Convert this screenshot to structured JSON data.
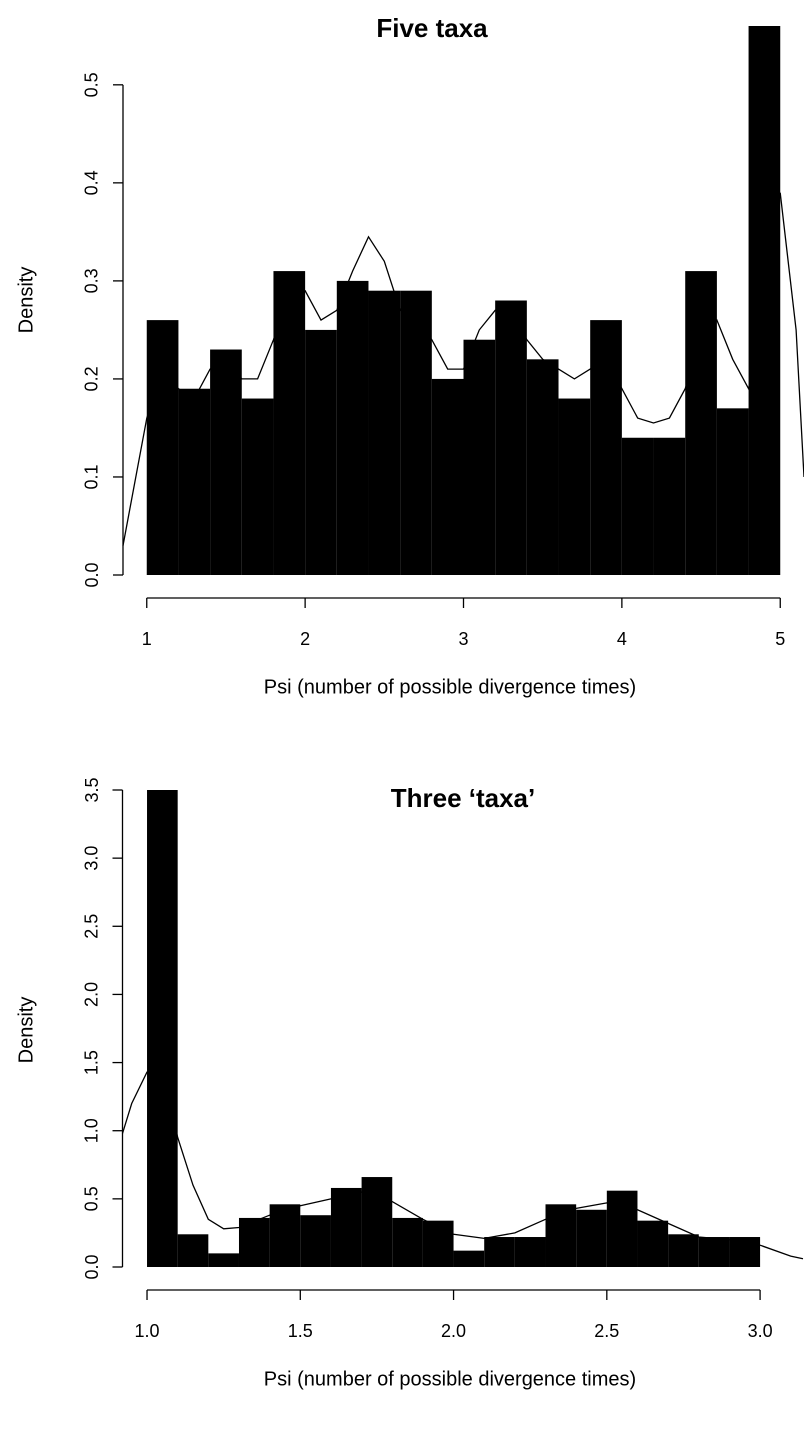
{
  "chart_data": [
    {
      "type": "histogram",
      "title": "Five taxa",
      "xlabel": "Psi (number of possible divergence times)",
      "ylabel": "Density",
      "color": "#000000",
      "bins": [
        1.0,
        1.2,
        1.4,
        1.6,
        1.8,
        2.0,
        2.2,
        2.4,
        2.6,
        2.8,
        3.0,
        3.2,
        3.4,
        3.6,
        3.8,
        4.0,
        4.2,
        4.4,
        4.6,
        4.8,
        5.0
      ],
      "values": [
        0.26,
        0.19,
        0.23,
        0.18,
        0.31,
        0.25,
        0.3,
        0.29,
        0.29,
        0.2,
        0.24,
        0.28,
        0.22,
        0.18,
        0.26,
        0.14,
        0.14,
        0.31,
        0.17,
        0.56
      ],
      "density_curve": {
        "x": [
          0.85,
          1.0,
          1.1,
          1.2,
          1.3,
          1.4,
          1.5,
          1.6,
          1.7,
          1.8,
          1.9,
          2.0,
          2.1,
          2.2,
          2.3,
          2.4,
          2.5,
          2.6,
          2.7,
          2.8,
          2.9,
          3.0,
          3.1,
          3.2,
          3.3,
          3.4,
          3.5,
          3.6,
          3.7,
          3.8,
          3.9,
          4.0,
          4.1,
          4.2,
          4.3,
          4.4,
          4.5,
          4.6,
          4.7,
          4.8,
          4.9,
          5.0,
          5.1,
          5.15
        ],
        "y": [
          0.03,
          0.16,
          0.21,
          0.19,
          0.18,
          0.21,
          0.22,
          0.2,
          0.2,
          0.24,
          0.29,
          0.29,
          0.26,
          0.27,
          0.31,
          0.345,
          0.32,
          0.27,
          0.26,
          0.24,
          0.21,
          0.21,
          0.25,
          0.27,
          0.27,
          0.24,
          0.22,
          0.21,
          0.2,
          0.21,
          0.22,
          0.19,
          0.16,
          0.155,
          0.16,
          0.19,
          0.24,
          0.26,
          0.22,
          0.19,
          0.27,
          0.39,
          0.25,
          0.1
        ]
      },
      "xlim": [
        0.85,
        5.15
      ],
      "ylim": [
        0,
        0.56
      ],
      "xticks": [
        1,
        2,
        3,
        4,
        5
      ],
      "yticks": [
        {
          "value": 0,
          "label": "0.0"
        },
        0.1,
        0.2,
        0.3,
        0.4,
        0.5
      ]
    },
    {
      "type": "histogram",
      "title": "Three ‘taxa’",
      "xlabel": "Psi (number of possible divergence times)",
      "ylabel": "Density",
      "color": "#000000",
      "bins": [
        1.0,
        1.1,
        1.2,
        1.3,
        1.4,
        1.5,
        1.6,
        1.7,
        1.8,
        1.9,
        2.0,
        2.1,
        2.2,
        2.3,
        2.4,
        2.5,
        2.6,
        2.7,
        2.8,
        2.9,
        3.0
      ],
      "values": [
        3.5,
        0.24,
        0.1,
        0.36,
        0.46,
        0.38,
        0.58,
        0.66,
        0.36,
        0.34,
        0.12,
        0.22,
        0.22,
        0.46,
        0.42,
        0.56,
        0.34,
        0.24,
        0.22,
        0.22
      ],
      "density_curve": {
        "x": [
          0.92,
          0.95,
          1.0,
          1.05,
          1.1,
          1.15,
          1.2,
          1.25,
          1.3,
          1.4,
          1.5,
          1.6,
          1.7,
          1.8,
          1.9,
          2.0,
          2.1,
          2.2,
          2.3,
          2.4,
          2.5,
          2.6,
          2.7,
          2.8,
          2.9,
          3.0,
          3.1,
          3.14
        ],
        "y": [
          0.98,
          1.2,
          1.43,
          1.45,
          0.95,
          0.6,
          0.35,
          0.28,
          0.29,
          0.38,
          0.45,
          0.5,
          0.55,
          0.48,
          0.35,
          0.24,
          0.21,
          0.25,
          0.35,
          0.43,
          0.47,
          0.42,
          0.32,
          0.22,
          0.2,
          0.16,
          0.08,
          0.06
        ]
      },
      "xlim": [
        0.92,
        3.14
      ],
      "ylim": [
        0,
        3.5
      ],
      "xticks": [
        {
          "value": 1,
          "label": "1.0"
        },
        1.5,
        {
          "value": 2,
          "label": "2.0"
        },
        2.5,
        {
          "value": 3,
          "label": "3.0"
        }
      ],
      "yticks": [
        {
          "value": 0,
          "label": "0.0"
        },
        0.5,
        {
          "value": 1,
          "label": "1.0"
        },
        1.5,
        {
          "value": 2,
          "label": "2.0"
        },
        2.5,
        {
          "value": 3,
          "label": "3.0"
        },
        3.5
      ]
    }
  ]
}
